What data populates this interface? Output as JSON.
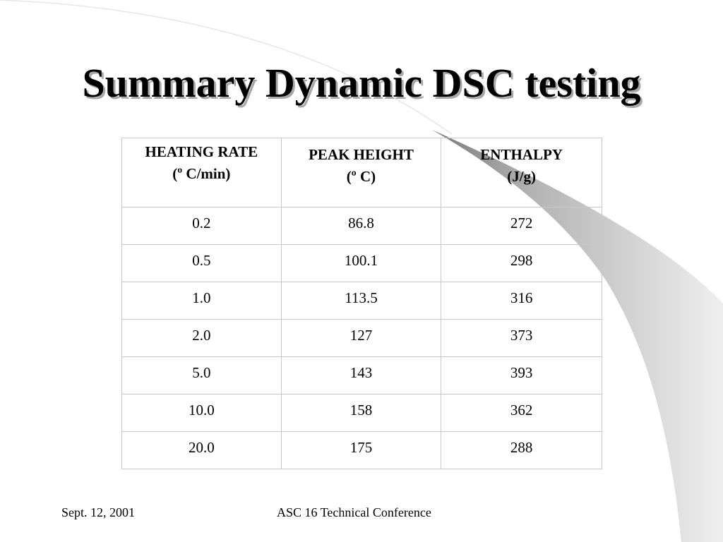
{
  "slide": {
    "title": "Summary Dynamic DSC testing"
  },
  "table": {
    "headers": [
      {
        "line1": "HEATING RATE",
        "line2": "(º C/min)"
      },
      {
        "line1": "PEAK HEIGHT",
        "line2": "(º C)"
      },
      {
        "line1": "ENTHALPY",
        "line2": "(J/g)"
      }
    ],
    "rows": [
      [
        "0.2",
        "86.8",
        "272"
      ],
      [
        "0.5",
        "100.1",
        "298"
      ],
      [
        "1.0",
        "113.5",
        "316"
      ],
      [
        "2.0",
        "127",
        "373"
      ],
      [
        "5.0",
        "143",
        "393"
      ],
      [
        "10.0",
        "158",
        "362"
      ],
      [
        "20.0",
        "175",
        "288"
      ]
    ]
  },
  "footer": {
    "date": "Sept. 12, 2001",
    "conference": "ASC 16 Technical Conference"
  }
}
